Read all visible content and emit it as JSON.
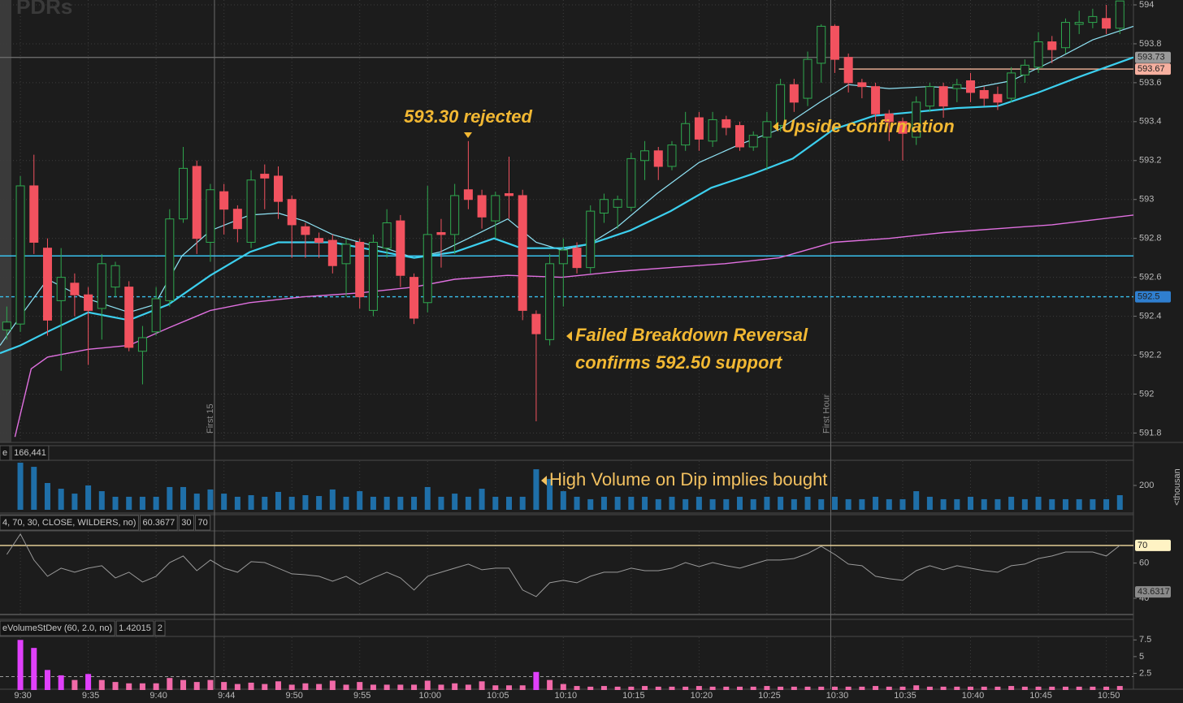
{
  "chart_data": [
    {
      "type": "candlestick",
      "watermark": "PDRs",
      "categories": [
        null,
        "9:30",
        null,
        null,
        null,
        null,
        "9:35",
        null,
        null,
        null,
        null,
        "9:40",
        null,
        null,
        null,
        null,
        "9:44",
        null,
        null,
        null,
        null,
        "9:50",
        null,
        null,
        null,
        null,
        "9:55",
        null,
        null,
        null,
        null,
        "10:00",
        null,
        null,
        null,
        null,
        "10:05",
        null,
        null,
        null,
        null,
        "10:10",
        null,
        null,
        null,
        null,
        "10:15",
        null,
        null,
        null,
        null,
        "10:20",
        null,
        null,
        null,
        null,
        "10:25",
        null,
        null,
        null,
        null,
        "10:30",
        null,
        null,
        null,
        null,
        "10:35",
        null,
        null,
        null,
        null,
        "10:40",
        null,
        null,
        null,
        null,
        "10:45",
        null,
        null,
        null,
        null,
        "10:50",
        null
      ],
      "open": [
        592.33,
        592.36,
        593.07,
        592.75,
        592.48,
        592.57,
        592.51,
        592.44,
        592.55,
        592.55,
        592.22,
        592.32,
        592.48,
        592.9,
        593.17,
        592.78,
        593.04,
        592.95,
        592.78,
        593.13,
        593.12,
        593.0,
        592.86,
        592.8,
        592.79,
        592.67,
        592.78,
        592.43,
        592.75,
        592.89,
        592.6,
        592.47,
        592.83,
        592.82,
        593.05,
        593.02,
        592.89,
        593.03,
        593.02,
        592.41,
        592.28,
        592.67,
        592.75,
        592.65,
        592.93,
        592.96,
        592.96,
        593.2,
        593.25,
        593.17,
        593.28,
        593.42,
        593.3,
        593.41,
        593.38,
        593.27,
        593.32,
        593.38,
        593.59,
        593.52,
        593.7,
        593.89,
        593.73,
        593.6,
        593.58,
        593.44,
        593.4,
        593.32,
        593.48,
        593.58,
        593.57,
        593.61,
        593.56,
        593.54,
        593.52,
        593.64,
        593.68,
        593.81,
        593.78,
        593.9,
        593.91,
        593.93,
        593.88
      ],
      "high": [
        592.45,
        593.12,
        593.23,
        592.8,
        592.75,
        592.62,
        592.55,
        592.72,
        592.68,
        592.58,
        592.35,
        592.55,
        592.95,
        593.27,
        593.2,
        593.08,
        593.08,
        592.97,
        593.15,
        593.18,
        593.17,
        593.02,
        592.88,
        592.83,
        592.82,
        592.8,
        592.8,
        592.82,
        592.95,
        592.92,
        592.62,
        593.07,
        592.9,
        593.08,
        593.3,
        593.05,
        593.04,
        593.22,
        593.05,
        592.43,
        592.72,
        592.8,
        592.78,
        592.97,
        593.03,
        593.02,
        593.24,
        593.3,
        593.27,
        593.3,
        593.45,
        593.45,
        593.45,
        593.43,
        593.4,
        593.35,
        593.45,
        593.62,
        593.62,
        593.76,
        593.9,
        593.9,
        593.75,
        593.62,
        593.6,
        593.46,
        593.42,
        593.53,
        593.6,
        593.6,
        593.62,
        593.65,
        593.58,
        593.58,
        593.68,
        593.72,
        593.86,
        593.84,
        593.93,
        593.97,
        593.98,
        594.0,
        594.02
      ],
      "low": [
        592.28,
        592.32,
        592.72,
        592.3,
        592.12,
        592.4,
        592.15,
        592.28,
        592.5,
        592.22,
        592.05,
        592.3,
        592.45,
        592.88,
        592.72,
        592.68,
        592.82,
        592.78,
        592.75,
        592.95,
        592.9,
        592.7,
        592.7,
        592.7,
        592.62,
        592.5,
        592.44,
        592.4,
        592.7,
        592.55,
        592.36,
        592.42,
        592.65,
        592.72,
        592.95,
        592.85,
        592.8,
        592.9,
        592.38,
        591.86,
        592.25,
        592.45,
        592.62,
        592.62,
        592.88,
        592.85,
        592.94,
        593.1,
        593.1,
        593.15,
        593.25,
        593.25,
        593.27,
        593.33,
        593.25,
        593.25,
        593.15,
        593.35,
        593.45,
        593.48,
        593.6,
        593.65,
        593.55,
        593.52,
        593.4,
        593.3,
        593.2,
        593.28,
        593.45,
        593.42,
        593.5,
        593.5,
        593.48,
        593.46,
        593.5,
        593.6,
        593.65,
        593.7,
        593.75,
        593.85,
        593.88,
        593.85,
        593.85
      ],
      "close": [
        592.37,
        593.07,
        592.78,
        592.38,
        592.6,
        592.51,
        592.43,
        592.67,
        592.66,
        592.24,
        592.29,
        592.49,
        592.9,
        593.16,
        592.8,
        593.05,
        592.95,
        592.85,
        593.1,
        593.11,
        592.99,
        592.87,
        592.82,
        592.78,
        592.66,
        592.77,
        592.5,
        592.78,
        592.88,
        592.61,
        592.39,
        592.82,
        592.82,
        593.02,
        593.0,
        592.91,
        593.02,
        593.02,
        592.43,
        592.31,
        592.67,
        592.74,
        592.65,
        592.94,
        593.0,
        593.0,
        593.21,
        593.25,
        593.17,
        593.28,
        593.39,
        593.31,
        593.41,
        593.37,
        593.27,
        593.33,
        593.4,
        593.59,
        593.5,
        593.72,
        593.89,
        593.72,
        593.6,
        593.58,
        593.44,
        593.4,
        593.34,
        593.5,
        593.58,
        593.48,
        593.59,
        593.55,
        593.52,
        593.5,
        593.65,
        593.69,
        593.81,
        593.77,
        593.91,
        593.91,
        593.94,
        593.88,
        594.02
      ],
      "up_color": "#2fa84f",
      "down_color": "#f2525f",
      "xlim": [
        -0.5,
        83
      ],
      "ylim": [
        591.76,
        594.025
      ],
      "yticks": [
        594,
        593.8,
        593.6,
        593.4,
        593.2,
        593,
        592.8,
        592.6,
        592.4,
        592.2,
        592,
        591.8
      ],
      "grid": true,
      "lines": [
        {
          "color": "#8fe3f5",
          "width": 1.2,
          "x": [
            -0.5,
            1.0,
            3.0,
            5.5,
            9.0,
            10.9,
            12.9,
            15.0,
            17.9,
            20.0,
            21.9,
            24.0,
            26.0,
            27.9,
            30.0,
            31.9,
            34.0,
            36.9,
            39.0,
            40.9,
            42.9,
            45.0,
            47.9,
            51.0,
            53.9,
            56.9,
            59.9,
            62.0,
            65.0,
            67.9,
            71.0,
            74.0,
            77.0,
            80.0,
            83.0
          ],
          "values": [
            592.25,
            592.4,
            592.59,
            592.5,
            592.42,
            592.46,
            592.71,
            592.84,
            592.92,
            592.93,
            592.89,
            592.82,
            592.78,
            592.75,
            592.7,
            592.73,
            592.8,
            592.9,
            592.78,
            592.74,
            592.77,
            592.86,
            593.03,
            593.19,
            593.28,
            593.36,
            593.5,
            593.59,
            593.57,
            593.58,
            593.57,
            593.61,
            593.71,
            593.82,
            593.89
          ]
        },
        {
          "color": "#3ccfee",
          "width": 2.2,
          "x": [
            -0.5,
            1.0,
            3.0,
            6.0,
            9.0,
            11.9,
            15.0,
            17.9,
            20.0,
            24.0,
            27.0,
            30.0,
            33.0,
            35.9,
            37.9,
            40.9,
            42.9,
            45.9,
            48.9,
            51.9,
            54.9,
            57.9,
            60.9,
            63.9,
            67.0,
            70.0,
            73.0,
            76.0,
            79.0,
            83.0
          ],
          "values": [
            592.21,
            592.25,
            592.32,
            592.42,
            592.38,
            592.46,
            592.61,
            592.73,
            592.78,
            592.78,
            592.74,
            592.7,
            592.73,
            592.8,
            592.75,
            592.75,
            592.77,
            592.84,
            592.94,
            593.06,
            593.13,
            593.21,
            593.36,
            593.43,
            593.45,
            593.47,
            593.48,
            593.55,
            593.63,
            593.73
          ]
        },
        {
          "color": "#e070e0",
          "width": 1.4,
          "x": [
            0.6,
            1.8,
            3.0,
            6.0,
            9.0,
            11.9,
            15.0,
            17.9,
            21.9,
            26.0,
            30.0,
            33.0,
            36.9,
            40.9,
            45.0,
            48.9,
            52.9,
            56.9,
            60.9,
            65.0,
            69.0,
            73.0,
            77.0,
            83.0
          ],
          "values": [
            591.78,
            592.13,
            592.19,
            592.23,
            592.25,
            592.34,
            592.43,
            592.47,
            592.5,
            592.52,
            592.55,
            592.59,
            592.61,
            592.6,
            592.63,
            592.65,
            592.67,
            592.7,
            592.78,
            592.8,
            592.83,
            592.85,
            592.87,
            592.92
          ]
        }
      ],
      "levels": [
        {
          "value": 592.71,
          "color": "#39c0ec",
          "style": "solid"
        },
        {
          "value": 592.5,
          "color": "#39c0ec",
          "style": "dashed",
          "tag": true,
          "tag_color": "#2f7fd0"
        },
        {
          "value": 593.73,
          "color": "#6a6a6a",
          "style": "solid",
          "tag": true,
          "tag_color": "#9a9a9a"
        },
        {
          "value": 593.67,
          "color": "#f4b59a",
          "style": "solid",
          "tag": true,
          "tag_color": "#f6b0a0",
          "from": 61.3
        }
      ],
      "vlines": [
        {
          "x": 15.3,
          "label": "First 15"
        },
        {
          "x": 60.7,
          "label": "First Hour"
        }
      ],
      "annotations": [
        "593.30 rejected",
        "Upside confirmation",
        "Failed Breakdown Reversal",
        "confirms 592.50 support"
      ]
    },
    {
      "type": "bar",
      "header": [
        "e",
        "166,441"
      ],
      "axis_label": "<thousan",
      "values": [
        null,
        387,
        353,
        220,
        173,
        133,
        200,
        153,
        107,
        107,
        107,
        107,
        187,
        187,
        133,
        167,
        133,
        107,
        120,
        107,
        147,
        107,
        120,
        113,
        167,
        107,
        153,
        107,
        107,
        107,
        107,
        187,
        107,
        133,
        107,
        173,
        107,
        107,
        107,
        333,
        253,
        153,
        107,
        87,
        107,
        107,
        107,
        107,
        87,
        107,
        87,
        107,
        87,
        87,
        107,
        87,
        107,
        107,
        87,
        107,
        87,
        107,
        87,
        87,
        107,
        87,
        87,
        153,
        107,
        87,
        87,
        107,
        87,
        87,
        107,
        87,
        107,
        87,
        87,
        87,
        87,
        87,
        120
      ],
      "color": "#1f6fa8",
      "ylim": [
        0,
        400
      ],
      "yticks": [
        200
      ],
      "annotations": [
        "High Volume on Dip implies bought"
      ]
    },
    {
      "type": "line",
      "header": [
        "4, 70, 30, CLOSE, WILDERS, no)",
        "60.3677",
        "30",
        "70"
      ],
      "values": [
        64.9,
        76.5,
        61.7,
        52.5,
        57.1,
        54.8,
        57.1,
        58.5,
        51.6,
        54.8,
        49.3,
        52.5,
        60.3,
        64,
        55.7,
        61.7,
        57.1,
        54.8,
        60.8,
        60.3,
        57.1,
        53.9,
        53.4,
        52.5,
        49.7,
        52.5,
        47.9,
        51.6,
        54.8,
        51.6,
        44.7,
        52.5,
        54.8,
        57.1,
        59.4,
        56.2,
        57.1,
        57.1,
        44.7,
        41,
        48.8,
        50.2,
        48.8,
        52.5,
        54.8,
        54.8,
        57.1,
        55.7,
        55.7,
        57.1,
        60.3,
        58,
        60.3,
        58.5,
        57.1,
        59.4,
        61.7,
        61.7,
        62.6,
        65.4,
        69.5,
        64.9,
        59.4,
        58.5,
        52.5,
        51.1,
        50.2,
        55.7,
        58.5,
        56.2,
        58.5,
        57.1,
        55.7,
        54.8,
        58.5,
        59.4,
        62.6,
        64,
        66.3,
        66.3,
        66.3,
        64,
        70
      ],
      "color": "#9a9a9a",
      "ylim": [
        30.8,
        77.8
      ],
      "yticks": [
        60,
        40
      ],
      "levels": [
        {
          "value": 70,
          "color": "#f3dca0",
          "tag": true,
          "tag_color": "#fff3c4"
        }
      ],
      "value_tag": 43.6317
    },
    {
      "type": "bar",
      "header": [
        "eVolumeStDev (60, 2.0, no)",
        "1.42015",
        "2"
      ],
      "values": [
        null,
        7.5,
        6.3,
        3,
        2.2,
        1.5,
        2.4,
        1.5,
        1.2,
        1,
        1,
        1,
        1.8,
        1.5,
        1.2,
        1.5,
        1.2,
        0.9,
        1.1,
        0.9,
        1.3,
        0.8,
        1,
        0.9,
        1.4,
        0.8,
        1.2,
        0.8,
        0.8,
        0.8,
        0.8,
        1.4,
        0.8,
        1,
        0.8,
        1.3,
        0.7,
        0.7,
        0.7,
        2.7,
        1.5,
        0.9,
        0.6,
        0.5,
        0.6,
        0.5,
        0.5,
        0.6,
        0.5,
        0.5,
        0.5,
        0.6,
        0.5,
        0.5,
        0.5,
        0.5,
        0.6,
        0.5,
        0.5,
        0.5,
        0.5,
        0.5,
        0.5,
        0.5,
        0.6,
        0.5,
        0.5,
        0.7,
        0.5,
        0.5,
        0.5,
        0.5,
        0.5,
        0.5,
        0.6,
        0.5,
        0.5,
        0.5,
        0.5,
        0.5,
        0.5,
        0.5,
        0.6
      ],
      "color": "#f06aa8",
      "highlight_color": "#e040fb",
      "level": 2,
      "ylim": [
        0,
        7.9
      ],
      "yticks": [
        7.5,
        5,
        2.5
      ]
    }
  ]
}
